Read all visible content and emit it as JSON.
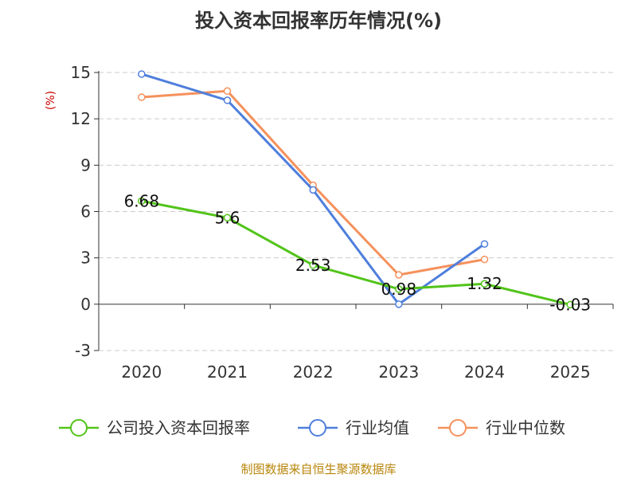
{
  "chart_data": {
    "type": "line",
    "title": "投入资本回报率历年情况(%)",
    "ylabel": "(%)",
    "categories": [
      "2020",
      "2021",
      "2022",
      "2023",
      "2024",
      "2025"
    ],
    "y_ticks": [
      "15",
      "12",
      "9",
      "6",
      "3",
      "0",
      "-3"
    ],
    "ylim": [
      -3,
      15
    ],
    "grid": true,
    "legend_position": "bottom",
    "series": [
      {
        "name": "公司投入资本回报率",
        "values": [
          6.68,
          5.6,
          2.53,
          0.98,
          1.32,
          -0.03
        ],
        "labels": [
          "6.68",
          "5.6",
          "2.53",
          "0.98",
          "1.32",
          "-0.03"
        ],
        "color": "#52c41a"
      },
      {
        "name": "行业均值",
        "values": [
          14.9,
          13.2,
          7.4,
          0.0,
          3.9,
          null
        ],
        "color": "#4f7fdc"
      },
      {
        "name": "行业中位数",
        "values": [
          13.4,
          13.8,
          7.7,
          1.9,
          2.9,
          null
        ],
        "color": "#f5915c"
      }
    ],
    "source": "制图数据来自恒生聚源数据库"
  }
}
